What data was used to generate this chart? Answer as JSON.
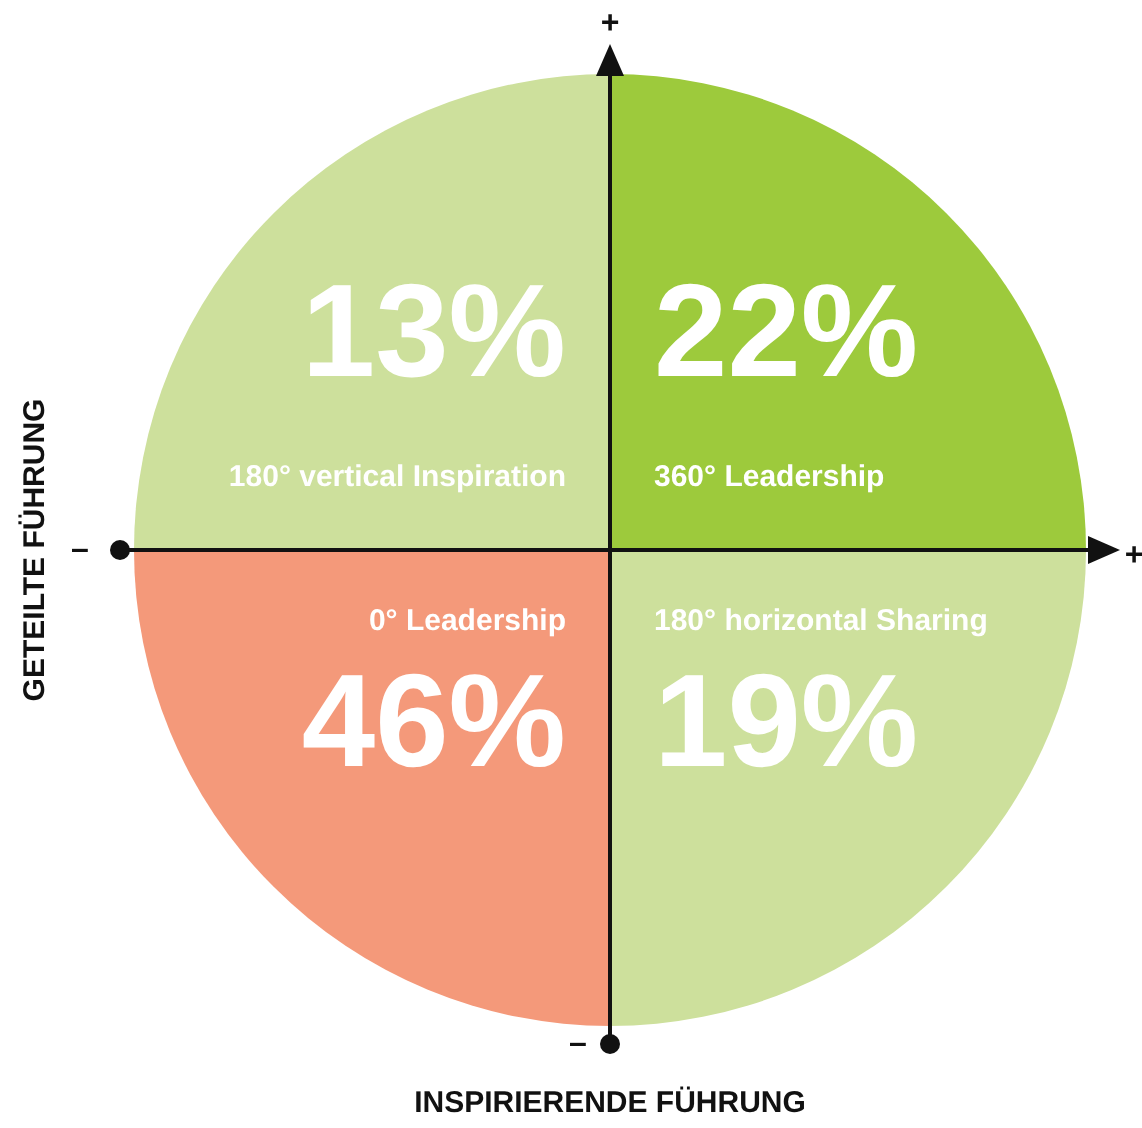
{
  "chart_data": {
    "type": "other",
    "categories": [
      "180° vertical Inspiration",
      "360° Leadership",
      "0° Leadership",
      "180° horizontal Sharing"
    ],
    "values": [
      13,
      22,
      46,
      19
    ],
    "value_labels": [
      "13%",
      "22%",
      "46%",
      "19%"
    ],
    "colors": [
      "#cde09c",
      "#9dca3c",
      "#f4997a",
      "#cde09c"
    ],
    "xlabel": "INSPIRIERENDE FÜHRUNG",
    "ylabel": "GETEILTE FÜHRUNG",
    "annotations": [
      "+",
      "+",
      "–",
      "–"
    ]
  }
}
